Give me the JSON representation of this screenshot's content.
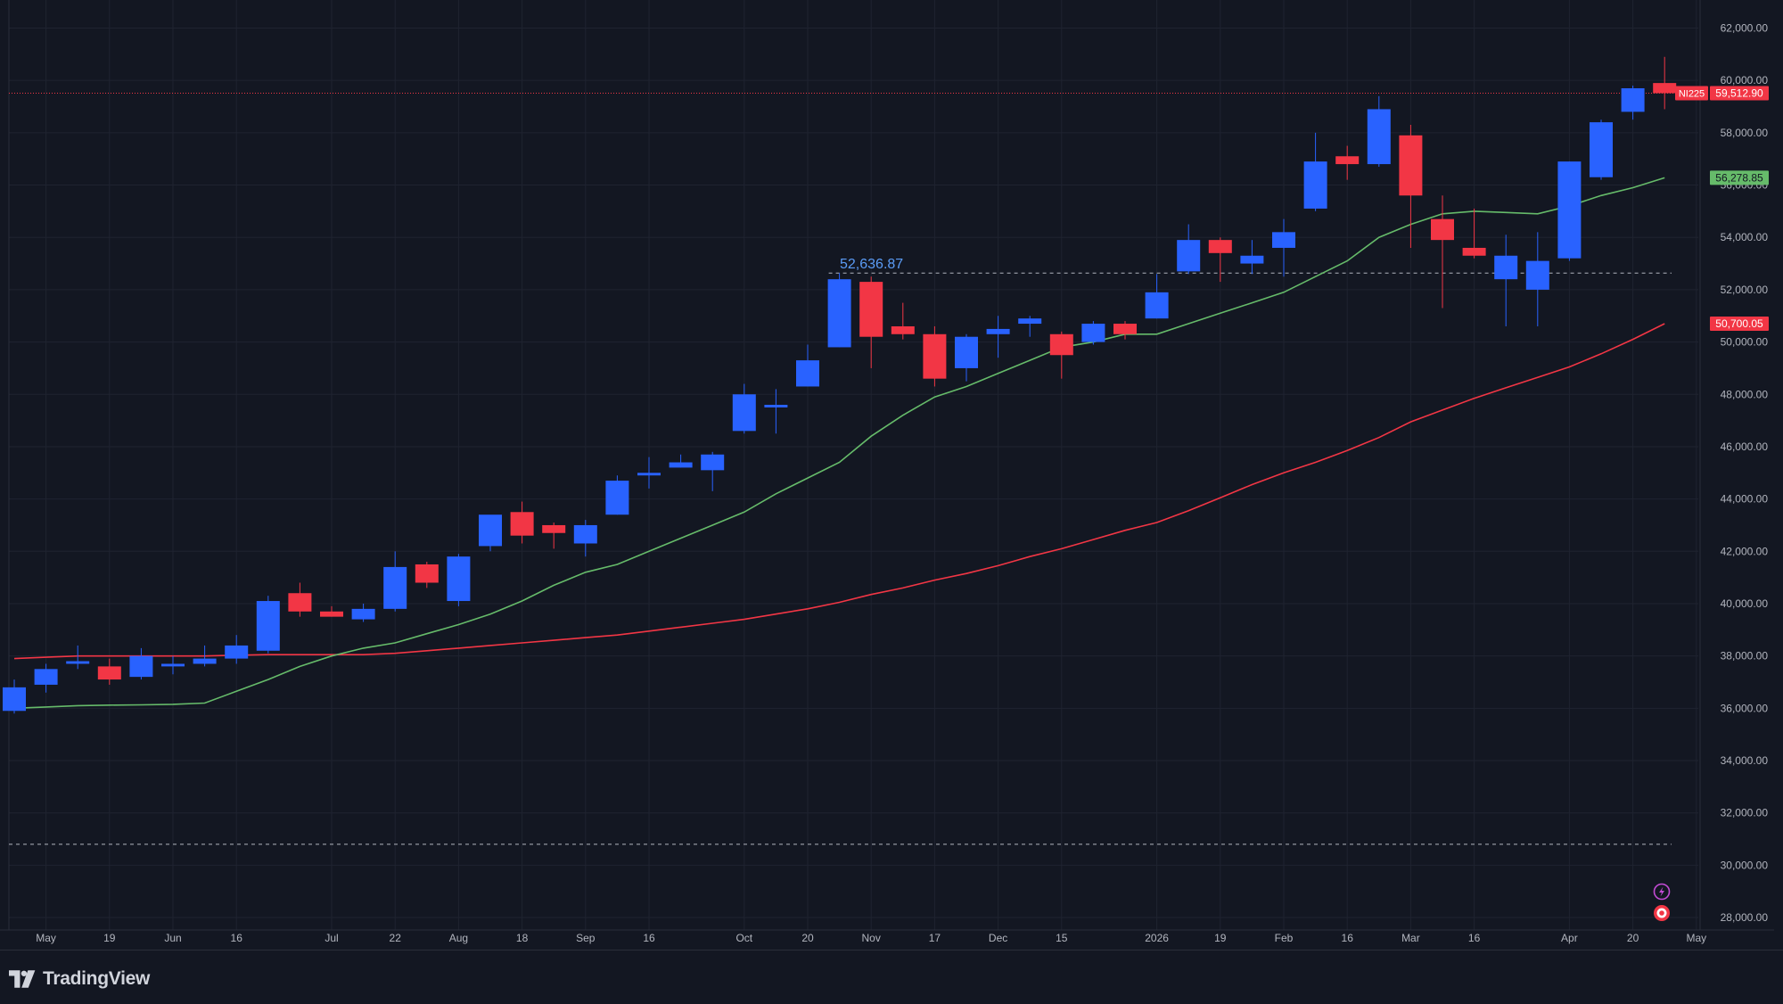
{
  "app": {
    "brand": "TradingView"
  },
  "colors": {
    "background": "#131722",
    "grid": "#1f2330",
    "up": "#2962ff",
    "down": "#f23645",
    "ma_fast": "#66bb6a",
    "ma_slow": "#f23645",
    "axis_text": "#b2b5be"
  },
  "icons": [
    "tradingview-logo-icon",
    "lightning-icon",
    "record-icon"
  ],
  "chart_data": {
    "type": "candlestick",
    "symbol": "NI225",
    "timeframe": "weekly",
    "ylim": [
      27500,
      62800
    ],
    "y_ticks": [
      "62,000.00",
      "60,000.00",
      "58,000.00",
      "56,000.00",
      "54,000.00",
      "52,000.00",
      "50,000.00",
      "48,000.00",
      "46,000.00",
      "44,000.00",
      "42,000.00",
      "40,000.00",
      "38,000.00",
      "36,000.00",
      "34,000.00",
      "32,000.00",
      "30,000.00",
      "28,000.00"
    ],
    "x_ticks": [
      {
        "label": "May",
        "index": 1
      },
      {
        "label": "19",
        "index": 3
      },
      {
        "label": "Jun",
        "index": 5
      },
      {
        "label": "16",
        "index": 7
      },
      {
        "label": "Jul",
        "index": 10
      },
      {
        "label": "22",
        "index": 12
      },
      {
        "label": "Aug",
        "index": 14
      },
      {
        "label": "18",
        "index": 16
      },
      {
        "label": "Sep",
        "index": 18
      },
      {
        "label": "16",
        "index": 20
      },
      {
        "label": "Oct",
        "index": 23
      },
      {
        "label": "20",
        "index": 25
      },
      {
        "label": "Nov",
        "index": 27
      },
      {
        "label": "17",
        "index": 29
      },
      {
        "label": "Dec",
        "index": 31
      },
      {
        "label": "15",
        "index": 33
      },
      {
        "label": "2026",
        "index": 36
      },
      {
        "label": "19",
        "index": 38
      },
      {
        "label": "Feb",
        "index": 40
      },
      {
        "label": "16",
        "index": 42
      },
      {
        "label": "Mar",
        "index": 44
      },
      {
        "label": "16",
        "index": 46
      },
      {
        "label": "Apr",
        "index": 49
      },
      {
        "label": "20",
        "index": 51
      },
      {
        "label": "May",
        "index": 53
      }
    ],
    "candles": [
      {
        "o": 35900,
        "h": 37100,
        "l": 35800,
        "c": 36800
      },
      {
        "o": 36900,
        "h": 37700,
        "l": 36600,
        "c": 37500
      },
      {
        "o": 37700,
        "h": 38400,
        "l": 37500,
        "c": 37800
      },
      {
        "o": 37600,
        "h": 37900,
        "l": 36900,
        "c": 37100
      },
      {
        "o": 37200,
        "h": 38300,
        "l": 37100,
        "c": 38000
      },
      {
        "o": 37600,
        "h": 38000,
        "l": 37300,
        "c": 37700
      },
      {
        "o": 37700,
        "h": 38400,
        "l": 37600,
        "c": 37900
      },
      {
        "o": 37900,
        "h": 38800,
        "l": 37700,
        "c": 38400
      },
      {
        "o": 38200,
        "h": 40300,
        "l": 38100,
        "c": 40100
      },
      {
        "o": 40400,
        "h": 40800,
        "l": 39500,
        "c": 39700
      },
      {
        "o": 39700,
        "h": 39900,
        "l": 39500,
        "c": 39500
      },
      {
        "o": 39400,
        "h": 40000,
        "l": 39300,
        "c": 39800
      },
      {
        "o": 39800,
        "h": 42000,
        "l": 39700,
        "c": 41400
      },
      {
        "o": 41500,
        "h": 41600,
        "l": 40600,
        "c": 40800
      },
      {
        "o": 40100,
        "h": 41900,
        "l": 39900,
        "c": 41800
      },
      {
        "o": 42200,
        "h": 43300,
        "l": 42000,
        "c": 43400
      },
      {
        "o": 43500,
        "h": 43900,
        "l": 42300,
        "c": 42600
      },
      {
        "o": 43000,
        "h": 43100,
        "l": 42100,
        "c": 42700
      },
      {
        "o": 42300,
        "h": 43200,
        "l": 41800,
        "c": 43000
      },
      {
        "o": 43400,
        "h": 44900,
        "l": 43400,
        "c": 44700
      },
      {
        "o": 44900,
        "h": 45600,
        "l": 44400,
        "c": 45000
      },
      {
        "o": 45200,
        "h": 45700,
        "l": 45200,
        "c": 45400
      },
      {
        "o": 45100,
        "h": 45800,
        "l": 44300,
        "c": 45700
      },
      {
        "o": 46600,
        "h": 48400,
        "l": 46500,
        "c": 48000
      },
      {
        "o": 47500,
        "h": 48200,
        "l": 46500,
        "c": 47600
      },
      {
        "o": 48300,
        "h": 49900,
        "l": 48300,
        "c": 49300
      },
      {
        "o": 49800,
        "h": 52637,
        "l": 49800,
        "c": 52400
      },
      {
        "o": 52300,
        "h": 52500,
        "l": 49000,
        "c": 50200
      },
      {
        "o": 50600,
        "h": 51500,
        "l": 50100,
        "c": 50300
      },
      {
        "o": 50300,
        "h": 50600,
        "l": 48300,
        "c": 48600
      },
      {
        "o": 49000,
        "h": 50300,
        "l": 48500,
        "c": 50200
      },
      {
        "o": 50300,
        "h": 51000,
        "l": 49400,
        "c": 50500
      },
      {
        "o": 50700,
        "h": 51000,
        "l": 50200,
        "c": 50900
      },
      {
        "o": 50300,
        "h": 50400,
        "l": 48600,
        "c": 49500
      },
      {
        "o": 50000,
        "h": 50800,
        "l": 49900,
        "c": 50700
      },
      {
        "o": 50700,
        "h": 50800,
        "l": 50100,
        "c": 50300
      },
      {
        "o": 50900,
        "h": 52600,
        "l": 50900,
        "c": 51900
      },
      {
        "o": 52700,
        "h": 54500,
        "l": 52600,
        "c": 53900
      },
      {
        "o": 53900,
        "h": 54000,
        "l": 52300,
        "c": 53400
      },
      {
        "o": 53000,
        "h": 53900,
        "l": 52600,
        "c": 53300
      },
      {
        "o": 53600,
        "h": 54700,
        "l": 52500,
        "c": 54200
      },
      {
        "o": 55100,
        "h": 58000,
        "l": 55000,
        "c": 56900
      },
      {
        "o": 57100,
        "h": 57500,
        "l": 56200,
        "c": 56800
      },
      {
        "o": 56800,
        "h": 59400,
        "l": 56700,
        "c": 58900
      },
      {
        "o": 57900,
        "h": 58300,
        "l": 53600,
        "c": 55600
      },
      {
        "o": 54700,
        "h": 55600,
        "l": 51300,
        "c": 53900
      },
      {
        "o": 53600,
        "h": 55100,
        "l": 53200,
        "c": 53300
      },
      {
        "o": 52400,
        "h": 54100,
        "l": 50600,
        "c": 53300
      },
      {
        "o": 52000,
        "h": 54200,
        "l": 50600,
        "c": 53100
      },
      {
        "o": 53200,
        "h": 56900,
        "l": 53100,
        "c": 56900
      },
      {
        "o": 56300,
        "h": 58500,
        "l": 56200,
        "c": 58400
      },
      {
        "o": 58800,
        "h": 59800,
        "l": 58500,
        "c": 59700
      },
      {
        "o": 59900,
        "h": 60900,
        "l": 58900,
        "c": 59513
      }
    ],
    "ma_fast": [
      36000,
      36050,
      36100,
      36120,
      36130,
      36150,
      36200,
      36650,
      37100,
      37600,
      38000,
      38300,
      38500,
      38850,
      39200,
      39600,
      40100,
      40700,
      41200,
      41500,
      42000,
      42500,
      43000,
      43500,
      44200,
      44800,
      45400,
      46400,
      47200,
      47900,
      48300,
      48800,
      49300,
      49800,
      50000,
      50300,
      50300,
      50700,
      51100,
      51500,
      51900,
      52500,
      53100,
      54000,
      54500,
      54900,
      55000,
      54950,
      54900,
      55200,
      55600,
      55900,
      56279
    ],
    "ma_slow": [
      37900,
      37950,
      38000,
      38000,
      38000,
      38000,
      38000,
      38030,
      38050,
      38050,
      38050,
      38050,
      38100,
      38200,
      38300,
      38400,
      38500,
      38600,
      38700,
      38800,
      38950,
      39100,
      39250,
      39400,
      39600,
      39800,
      40050,
      40350,
      40600,
      40900,
      41150,
      41450,
      41800,
      42100,
      42450,
      42800,
      43100,
      43550,
      44050,
      44550,
      45000,
      45400,
      45850,
      46350,
      46950,
      47400,
      47850,
      48250,
      48650,
      49050,
      49550,
      50100,
      50700
    ],
    "price_line": {
      "symbol": "NI225",
      "value": 59512.9,
      "label": "59,512.90"
    },
    "ma_fast_label": {
      "value": 56278.85,
      "label": "56,278.85"
    },
    "ma_slow_label": {
      "value": 50700.05,
      "label": "50,700.05"
    },
    "high_marker": {
      "value": 52636.87,
      "label": "52,636.87"
    },
    "low_level": 30800
  }
}
